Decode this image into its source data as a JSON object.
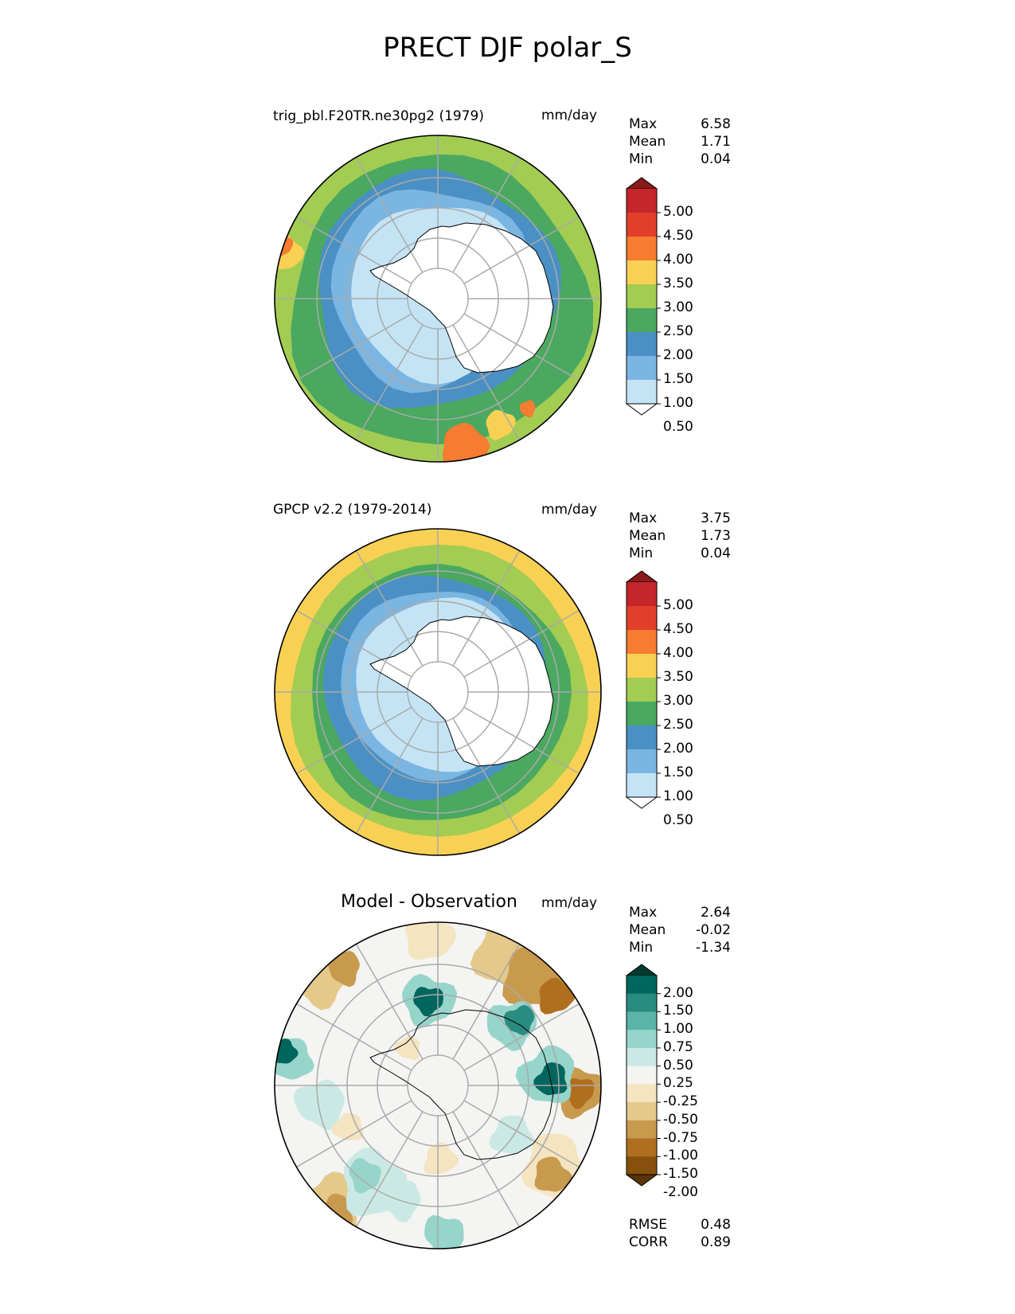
{
  "title": "PRECT DJF polar_S",
  "panels": [
    {
      "name": "test",
      "title": "trig_pbl.F20TR.ne30pg2 (1979)",
      "units": "mm/day",
      "stats": [
        {
          "label": "Max",
          "value": "6.58"
        },
        {
          "label": "Mean",
          "value": "1.71"
        },
        {
          "label": "Min",
          "value": "0.04"
        }
      ],
      "colorbar": {
        "labels": [
          "5.00",
          "4.50",
          "4.00",
          "3.50",
          "3.00",
          "2.50",
          "2.00",
          "1.50",
          "1.00",
          "0.50"
        ],
        "colors": [
          "#8b1a1a",
          "#c4262b",
          "#e23f2b",
          "#f57c30",
          "#f8d154",
          "#a3cc52",
          "#4aa860",
          "#4a90c4",
          "#7bb6e2",
          "#c4e4f6",
          "#ffffff"
        ],
        "top_color": "#8b1a1a",
        "bottom_color": "#ffffff"
      },
      "map_colors": {
        "outer": "#a3cc52",
        "ring1": "#4aa860",
        "ring2": "#4a90c4",
        "ring3": "#7bb6e2",
        "ring4": "#c4e4f6",
        "center": "#ffffff",
        "hot": "#c4262b",
        "warm": "#f57c30",
        "yellow": "#f8d154"
      }
    },
    {
      "name": "reference",
      "title": "GPCP v2.2 (1979-2014)",
      "units": "mm/day",
      "stats": [
        {
          "label": "Max",
          "value": "3.75"
        },
        {
          "label": "Mean",
          "value": "1.73"
        },
        {
          "label": "Min",
          "value": "0.04"
        }
      ],
      "colorbar": {
        "labels": [
          "5.00",
          "4.50",
          "4.00",
          "3.50",
          "3.00",
          "2.50",
          "2.00",
          "1.50",
          "1.00",
          "0.50"
        ],
        "colors": [
          "#8b1a1a",
          "#c4262b",
          "#e23f2b",
          "#f57c30",
          "#f8d154",
          "#a3cc52",
          "#4aa860",
          "#4a90c4",
          "#7bb6e2",
          "#c4e4f6",
          "#ffffff"
        ],
        "top_color": "#8b1a1a",
        "bottom_color": "#ffffff"
      },
      "map_colors": {
        "outer": "#f8d154",
        "ring1": "#a3cc52",
        "ring2": "#4aa860",
        "ring3": "#4a90c4",
        "ring4": "#7bb6e2",
        "ring5": "#c4e4f6",
        "center": "#ffffff"
      }
    },
    {
      "name": "difference",
      "title": "Model - Observation",
      "units": "mm/day",
      "stats": [
        {
          "label": "Max",
          "value": "2.64"
        },
        {
          "label": "Mean",
          "value": "-0.02"
        },
        {
          "label": "Min",
          "value": "-1.34"
        }
      ],
      "colorbar": {
        "labels": [
          "2.00",
          "1.50",
          "1.00",
          "0.75",
          "0.50",
          "0.25",
          "-0.25",
          "-0.50",
          "-0.75",
          "-1.00",
          "-1.50",
          "-2.00"
        ],
        "colors": [
          "#013b30",
          "#00665e",
          "#2a8c80",
          "#5ab4a8",
          "#97d5cb",
          "#cbe9e4",
          "#f4f4f2",
          "#f4e4c0",
          "#e4c98a",
          "#c89a4e",
          "#b06f1f",
          "#87500d",
          "#5a3406"
        ],
        "top_color": "#013b30",
        "bottom_color": "#5a3406"
      },
      "map_colors": {
        "bg": "#f4f4f2",
        "teal_light": "#cbe9e4",
        "teal_mid": "#97d5cb",
        "teal_dark": "#2a8c80",
        "teal_darkest": "#00665e",
        "tan_light": "#f4e4c0",
        "tan_mid": "#e4c98a",
        "brown": "#c89a4e",
        "brown_dark": "#b06f1f"
      },
      "extra_stats": [
        {
          "label": "RMSE",
          "value": "0.48"
        },
        {
          "label": "CORR",
          "value": "0.89"
        }
      ]
    }
  ]
}
